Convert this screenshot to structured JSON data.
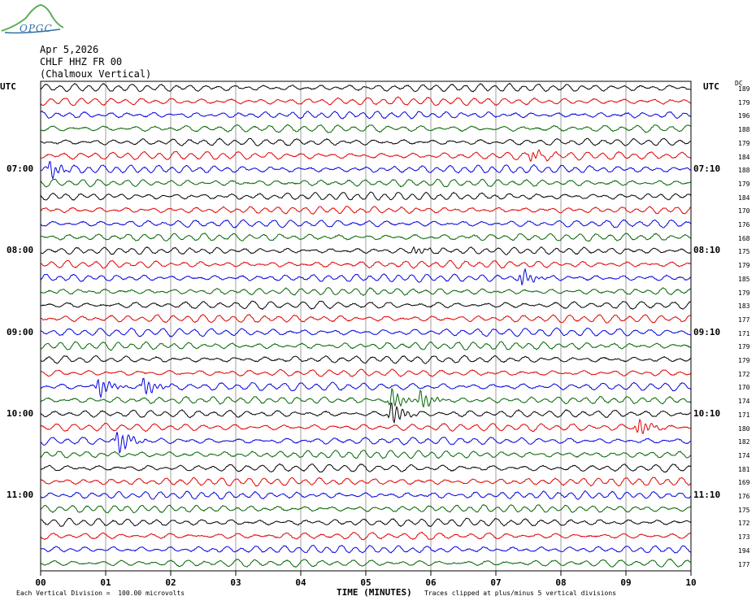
{
  "logo": {
    "text": "OPGC"
  },
  "header": {
    "date": "Apr 5,2026",
    "station": "CHLF HHZ FR 00",
    "location": "(Chalmoux Vertical)"
  },
  "axis": {
    "left_title": "UTC",
    "right_title": "UTC",
    "dc_title": "DC",
    "xlabel": "TIME (MINUTES)",
    "xticks": [
      "00",
      "01",
      "02",
      "03",
      "04",
      "05",
      "06",
      "07",
      "08",
      "09",
      "10"
    ]
  },
  "footer": {
    "scale": "Each Vertical Division =  100.00 microvolts",
    "clip": "Traces clipped at plus/minus 5 vertical divisions"
  },
  "colors": {
    "cycle": [
      "#000000",
      "#e00000",
      "#0000e0",
      "#006400"
    ]
  },
  "chart_data": {
    "type": "helicorder",
    "trace_minutes": 10,
    "left_hour_labels": [
      {
        "row": 6,
        "label": "07:00"
      },
      {
        "row": 12,
        "label": "08:00"
      },
      {
        "row": 18,
        "label": "09:00"
      },
      {
        "row": 24,
        "label": "10:00"
      },
      {
        "row": 30,
        "label": "11:00"
      }
    ],
    "right_hour_labels": [
      {
        "row": 6,
        "label": "07:10"
      },
      {
        "row": 12,
        "label": "08:10"
      },
      {
        "row": 18,
        "label": "09:10"
      },
      {
        "row": 24,
        "label": "10:10"
      },
      {
        "row": 30,
        "label": "11:10"
      }
    ],
    "dc_offsets": [
      "189",
      "179",
      "196",
      "188",
      "179",
      "184",
      "188",
      "179",
      "184",
      "170",
      "176",
      "168",
      "175",
      "179",
      "185",
      "179",
      "183",
      "177",
      "171",
      "179",
      "179",
      "172",
      "170",
      "174",
      "171",
      "180",
      "182",
      "174",
      "181",
      "169",
      "176",
      "175",
      "172",
      "173",
      "194",
      "177"
    ],
    "events": [
      {
        "row": 5,
        "minute": 7.55,
        "amplitude": 1.2
      },
      {
        "row": 6,
        "minute": 0.15,
        "amplitude": 2.0
      },
      {
        "row": 12,
        "minute": 5.75,
        "amplitude": 1.0
      },
      {
        "row": 14,
        "minute": 7.4,
        "amplitude": 2.0
      },
      {
        "row": 22,
        "minute": 0.9,
        "amplitude": 2.5
      },
      {
        "row": 22,
        "minute": 1.6,
        "amplitude": 2.2
      },
      {
        "row": 23,
        "minute": 5.4,
        "amplitude": 2.5
      },
      {
        "row": 23,
        "minute": 5.85,
        "amplitude": 2.2
      },
      {
        "row": 24,
        "minute": 5.4,
        "amplitude": 3.0
      },
      {
        "row": 25,
        "minute": 9.2,
        "amplitude": 2.2
      },
      {
        "row": 26,
        "minute": 1.2,
        "amplitude": 3.0
      }
    ]
  }
}
